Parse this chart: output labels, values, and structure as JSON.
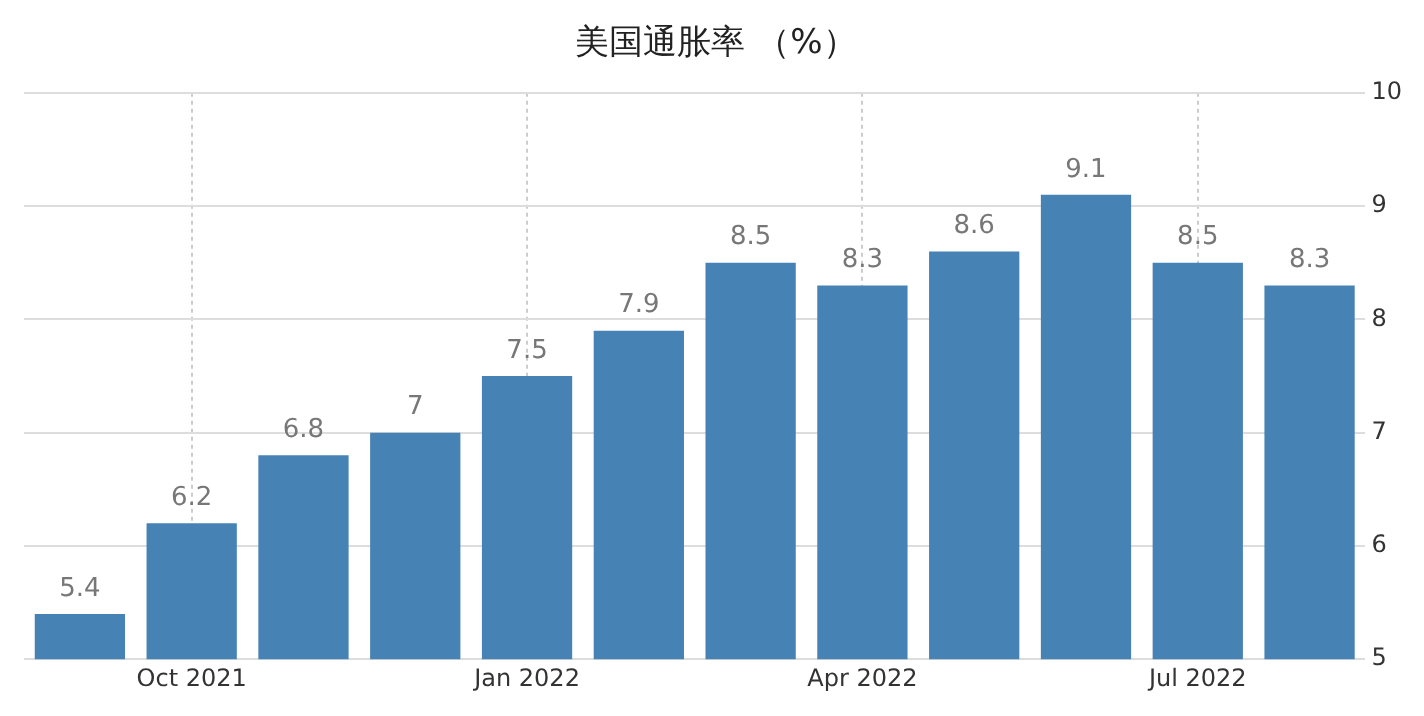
{
  "chart_data": {
    "type": "bar",
    "title": "美国通胀率 （%）",
    "categories": [
      null,
      "Oct 2021",
      null,
      null,
      "Jan 2022",
      null,
      null,
      "Apr 2022",
      null,
      null,
      "Jul 2022",
      null
    ],
    "values": [
      5.4,
      6.2,
      6.8,
      7,
      7.5,
      7.9,
      8.5,
      8.3,
      8.6,
      9.1,
      8.5,
      8.3
    ],
    "color": "#4682b4",
    "ylim": [
      5,
      10
    ],
    "yticks": [
      5,
      6,
      7,
      8,
      9,
      10
    ],
    "grid": true,
    "data_labels": true
  }
}
